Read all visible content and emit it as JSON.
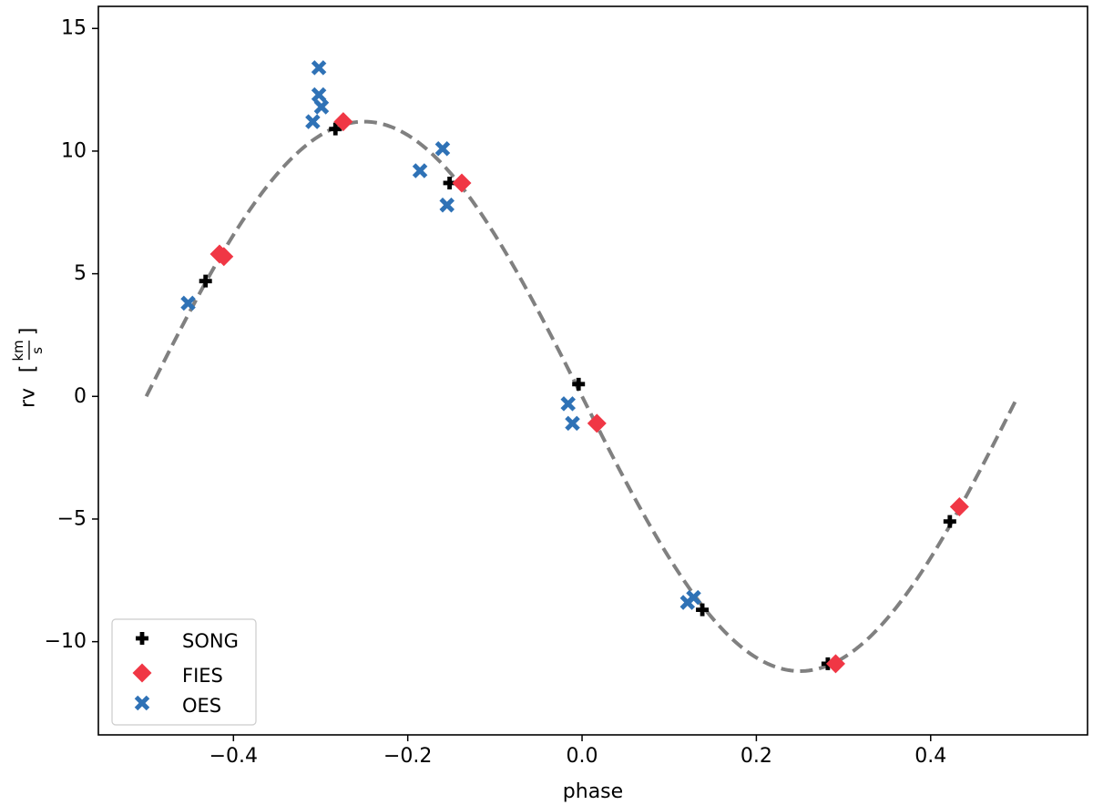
{
  "chart_data": {
    "type": "scatter",
    "title": "",
    "xlabel": "phase",
    "ylabel": "rv",
    "ylabel_unit_num": "km",
    "ylabel_unit_den": "s",
    "xlim": [
      -0.555,
      0.58
    ],
    "ylim": [
      -13.8,
      15.9
    ],
    "x_ticks": [
      -0.4,
      -0.2,
      0.0,
      0.2,
      0.4
    ],
    "x_tick_labels": [
      "−0.4",
      "−0.2",
      "0.0",
      "0.2",
      "0.4"
    ],
    "y_ticks": [
      -10,
      -5,
      0,
      5,
      10,
      15
    ],
    "y_tick_labels": [
      "−10",
      "−5",
      "0",
      "5",
      "10",
      "15"
    ],
    "grid": false,
    "legend_position": "lower-left",
    "model_curve": {
      "style": "dashed",
      "color": "#808080",
      "amplitude": 11.2,
      "x_range": [
        -0.5,
        0.5
      ]
    },
    "series": [
      {
        "name": "SONG",
        "marker": "plus",
        "color": "#000000",
        "points": [
          {
            "x": -0.432,
            "y": 4.7
          },
          {
            "x": -0.283,
            "y": 10.9
          },
          {
            "x": -0.152,
            "y": 8.7
          },
          {
            "x": -0.004,
            "y": 0.5
          },
          {
            "x": 0.138,
            "y": -8.7
          },
          {
            "x": 0.282,
            "y": -10.9
          },
          {
            "x": 0.422,
            "y": -5.1
          }
        ]
      },
      {
        "name": "FIES",
        "marker": "diamond",
        "color": "#f03745",
        "points": [
          {
            "x": -0.416,
            "y": 5.8
          },
          {
            "x": -0.411,
            "y": 5.7
          },
          {
            "x": -0.274,
            "y": 11.2
          },
          {
            "x": -0.138,
            "y": 8.7
          },
          {
            "x": 0.017,
            "y": -1.1
          },
          {
            "x": 0.291,
            "y": -10.9
          },
          {
            "x": 0.433,
            "y": -4.5
          }
        ]
      },
      {
        "name": "OES",
        "marker": "x",
        "color": "#2f72b6",
        "points": [
          {
            "x": -0.452,
            "y": 3.8
          },
          {
            "x": -0.302,
            "y": 13.4
          },
          {
            "x": -0.302,
            "y": 12.3
          },
          {
            "x": -0.299,
            "y": 11.8
          },
          {
            "x": -0.309,
            "y": 11.2
          },
          {
            "x": -0.186,
            "y": 9.2
          },
          {
            "x": -0.16,
            "y": 10.1
          },
          {
            "x": -0.155,
            "y": 7.8
          },
          {
            "x": -0.016,
            "y": -0.3
          },
          {
            "x": -0.011,
            "y": -1.1
          },
          {
            "x": 0.121,
            "y": -8.4
          },
          {
            "x": 0.128,
            "y": -8.2
          }
        ]
      }
    ]
  }
}
